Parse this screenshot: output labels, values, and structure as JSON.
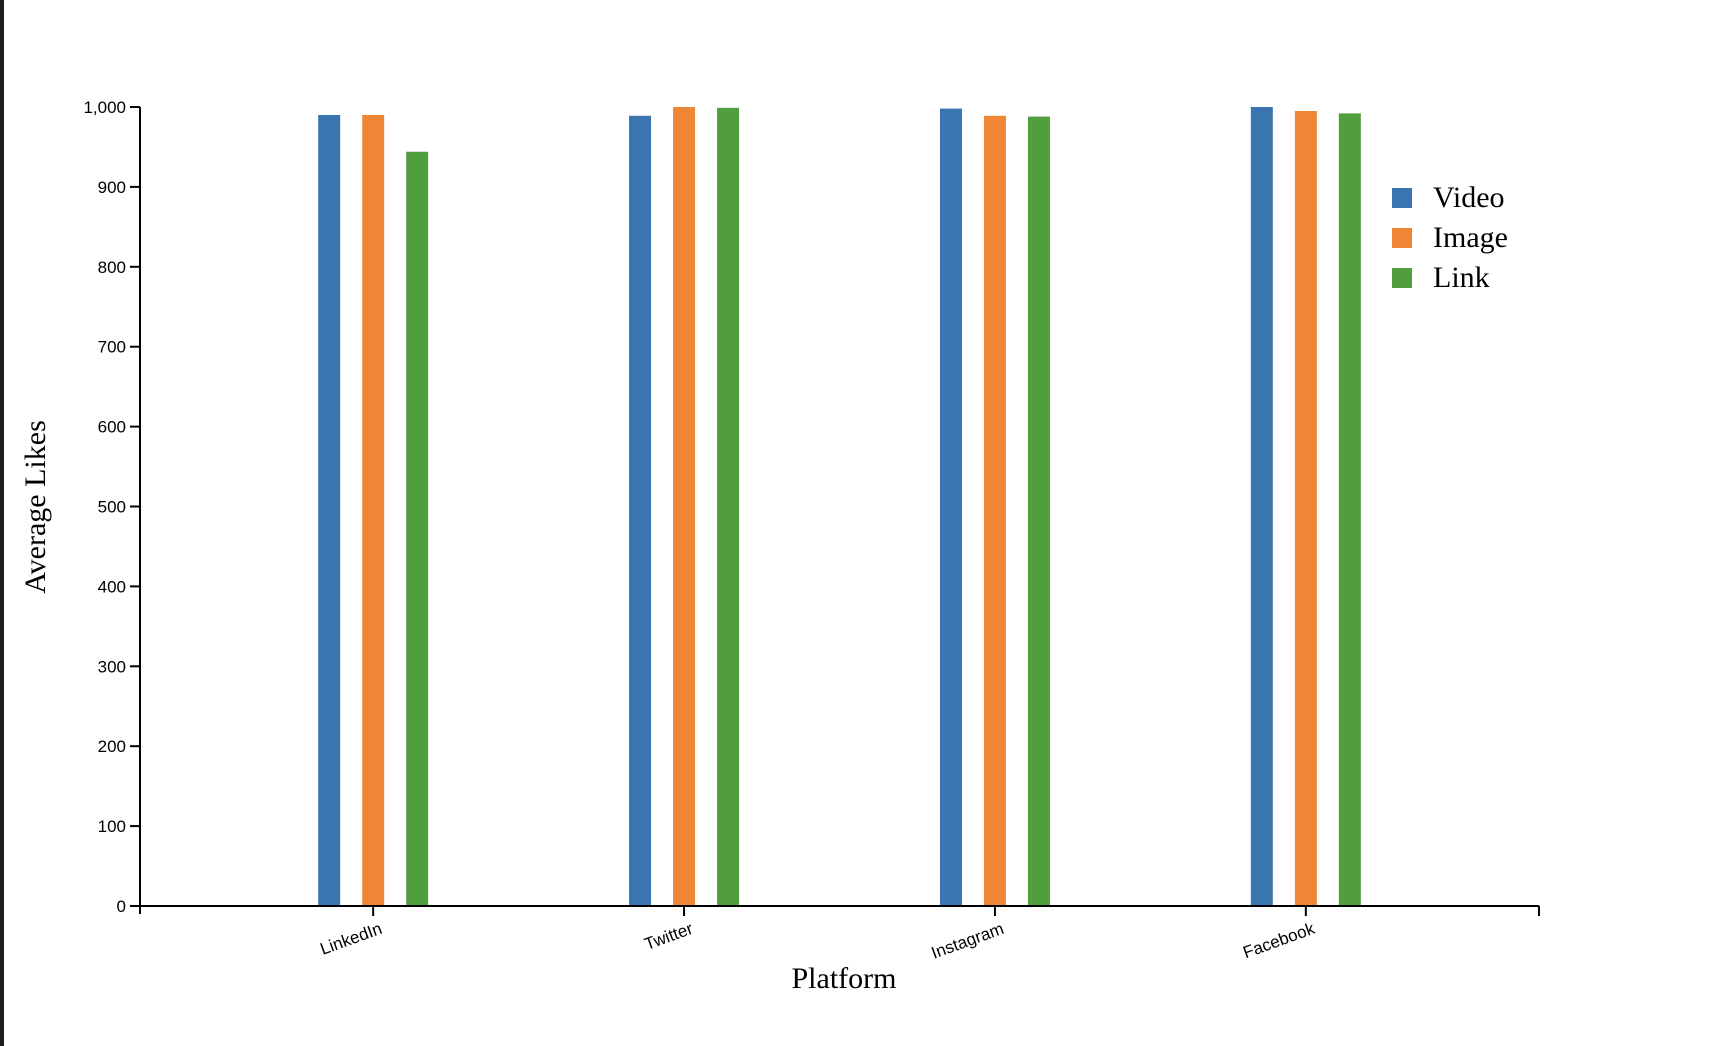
{
  "chart_data": {
    "type": "bar",
    "xlabel": "Platform",
    "ylabel": "Average Likes",
    "categories": [
      "LinkedIn",
      "Twitter",
      "Instagram",
      "Facebook"
    ],
    "series": [
      {
        "name": "Video",
        "color": "#3b75af",
        "values": [
          990,
          989,
          998,
          1000
        ]
      },
      {
        "name": "Image",
        "color": "#ef8636",
        "values": [
          990,
          1000,
          989,
          995
        ]
      },
      {
        "name": "Link",
        "color": "#519e3e",
        "values": [
          944,
          999,
          988,
          992
        ]
      }
    ],
    "ylim": [
      0,
      1000
    ],
    "yticks": [
      0,
      100,
      200,
      300,
      400,
      500,
      600,
      700,
      800,
      900,
      1000
    ],
    "ytick_labels": [
      "0",
      "100",
      "200",
      "300",
      "400",
      "500",
      "600",
      "700",
      "800",
      "900",
      "1,000"
    ],
    "grid": false,
    "legend": {
      "position": "top-right"
    }
  }
}
